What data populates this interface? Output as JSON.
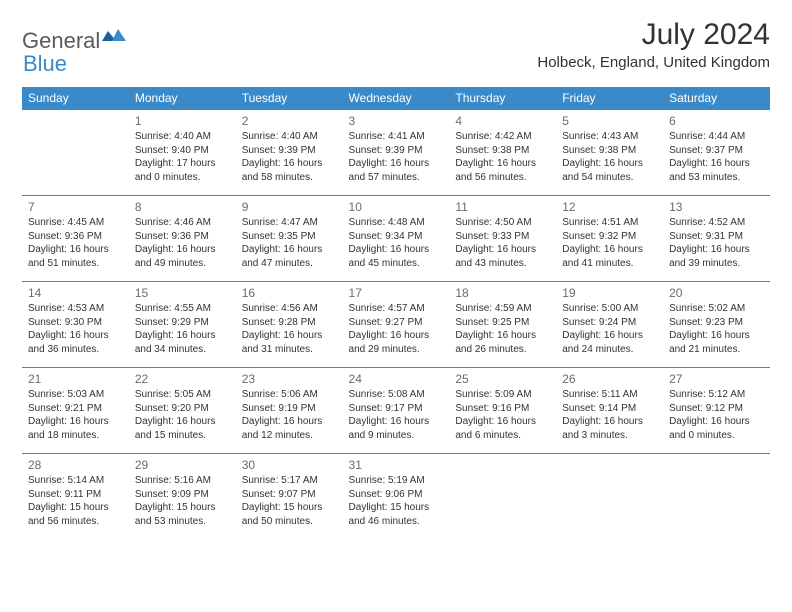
{
  "brand": {
    "general": "General",
    "blue": "Blue"
  },
  "colors": {
    "primary": "#3a8ac9",
    "text": "#333333",
    "daynum": "#6b6b6b",
    "background": "#ffffff"
  },
  "title": "July 2024",
  "location": "Holbeck, England, United Kingdom",
  "weekdays": [
    "Sunday",
    "Monday",
    "Tuesday",
    "Wednesday",
    "Thursday",
    "Friday",
    "Saturday"
  ],
  "weeks": [
    [
      null,
      {
        "n": "1",
        "sr": "Sunrise: 4:40 AM",
        "ss": "Sunset: 9:40 PM",
        "dl1": "Daylight: 17 hours",
        "dl2": "and 0 minutes."
      },
      {
        "n": "2",
        "sr": "Sunrise: 4:40 AM",
        "ss": "Sunset: 9:39 PM",
        "dl1": "Daylight: 16 hours",
        "dl2": "and 58 minutes."
      },
      {
        "n": "3",
        "sr": "Sunrise: 4:41 AM",
        "ss": "Sunset: 9:39 PM",
        "dl1": "Daylight: 16 hours",
        "dl2": "and 57 minutes."
      },
      {
        "n": "4",
        "sr": "Sunrise: 4:42 AM",
        "ss": "Sunset: 9:38 PM",
        "dl1": "Daylight: 16 hours",
        "dl2": "and 56 minutes."
      },
      {
        "n": "5",
        "sr": "Sunrise: 4:43 AM",
        "ss": "Sunset: 9:38 PM",
        "dl1": "Daylight: 16 hours",
        "dl2": "and 54 minutes."
      },
      {
        "n": "6",
        "sr": "Sunrise: 4:44 AM",
        "ss": "Sunset: 9:37 PM",
        "dl1": "Daylight: 16 hours",
        "dl2": "and 53 minutes."
      }
    ],
    [
      {
        "n": "7",
        "sr": "Sunrise: 4:45 AM",
        "ss": "Sunset: 9:36 PM",
        "dl1": "Daylight: 16 hours",
        "dl2": "and 51 minutes."
      },
      {
        "n": "8",
        "sr": "Sunrise: 4:46 AM",
        "ss": "Sunset: 9:36 PM",
        "dl1": "Daylight: 16 hours",
        "dl2": "and 49 minutes."
      },
      {
        "n": "9",
        "sr": "Sunrise: 4:47 AM",
        "ss": "Sunset: 9:35 PM",
        "dl1": "Daylight: 16 hours",
        "dl2": "and 47 minutes."
      },
      {
        "n": "10",
        "sr": "Sunrise: 4:48 AM",
        "ss": "Sunset: 9:34 PM",
        "dl1": "Daylight: 16 hours",
        "dl2": "and 45 minutes."
      },
      {
        "n": "11",
        "sr": "Sunrise: 4:50 AM",
        "ss": "Sunset: 9:33 PM",
        "dl1": "Daylight: 16 hours",
        "dl2": "and 43 minutes."
      },
      {
        "n": "12",
        "sr": "Sunrise: 4:51 AM",
        "ss": "Sunset: 9:32 PM",
        "dl1": "Daylight: 16 hours",
        "dl2": "and 41 minutes."
      },
      {
        "n": "13",
        "sr": "Sunrise: 4:52 AM",
        "ss": "Sunset: 9:31 PM",
        "dl1": "Daylight: 16 hours",
        "dl2": "and 39 minutes."
      }
    ],
    [
      {
        "n": "14",
        "sr": "Sunrise: 4:53 AM",
        "ss": "Sunset: 9:30 PM",
        "dl1": "Daylight: 16 hours",
        "dl2": "and 36 minutes."
      },
      {
        "n": "15",
        "sr": "Sunrise: 4:55 AM",
        "ss": "Sunset: 9:29 PM",
        "dl1": "Daylight: 16 hours",
        "dl2": "and 34 minutes."
      },
      {
        "n": "16",
        "sr": "Sunrise: 4:56 AM",
        "ss": "Sunset: 9:28 PM",
        "dl1": "Daylight: 16 hours",
        "dl2": "and 31 minutes."
      },
      {
        "n": "17",
        "sr": "Sunrise: 4:57 AM",
        "ss": "Sunset: 9:27 PM",
        "dl1": "Daylight: 16 hours",
        "dl2": "and 29 minutes."
      },
      {
        "n": "18",
        "sr": "Sunrise: 4:59 AM",
        "ss": "Sunset: 9:25 PM",
        "dl1": "Daylight: 16 hours",
        "dl2": "and 26 minutes."
      },
      {
        "n": "19",
        "sr": "Sunrise: 5:00 AM",
        "ss": "Sunset: 9:24 PM",
        "dl1": "Daylight: 16 hours",
        "dl2": "and 24 minutes."
      },
      {
        "n": "20",
        "sr": "Sunrise: 5:02 AM",
        "ss": "Sunset: 9:23 PM",
        "dl1": "Daylight: 16 hours",
        "dl2": "and 21 minutes."
      }
    ],
    [
      {
        "n": "21",
        "sr": "Sunrise: 5:03 AM",
        "ss": "Sunset: 9:21 PM",
        "dl1": "Daylight: 16 hours",
        "dl2": "and 18 minutes."
      },
      {
        "n": "22",
        "sr": "Sunrise: 5:05 AM",
        "ss": "Sunset: 9:20 PM",
        "dl1": "Daylight: 16 hours",
        "dl2": "and 15 minutes."
      },
      {
        "n": "23",
        "sr": "Sunrise: 5:06 AM",
        "ss": "Sunset: 9:19 PM",
        "dl1": "Daylight: 16 hours",
        "dl2": "and 12 minutes."
      },
      {
        "n": "24",
        "sr": "Sunrise: 5:08 AM",
        "ss": "Sunset: 9:17 PM",
        "dl1": "Daylight: 16 hours",
        "dl2": "and 9 minutes."
      },
      {
        "n": "25",
        "sr": "Sunrise: 5:09 AM",
        "ss": "Sunset: 9:16 PM",
        "dl1": "Daylight: 16 hours",
        "dl2": "and 6 minutes."
      },
      {
        "n": "26",
        "sr": "Sunrise: 5:11 AM",
        "ss": "Sunset: 9:14 PM",
        "dl1": "Daylight: 16 hours",
        "dl2": "and 3 minutes."
      },
      {
        "n": "27",
        "sr": "Sunrise: 5:12 AM",
        "ss": "Sunset: 9:12 PM",
        "dl1": "Daylight: 16 hours",
        "dl2": "and 0 minutes."
      }
    ],
    [
      {
        "n": "28",
        "sr": "Sunrise: 5:14 AM",
        "ss": "Sunset: 9:11 PM",
        "dl1": "Daylight: 15 hours",
        "dl2": "and 56 minutes."
      },
      {
        "n": "29",
        "sr": "Sunrise: 5:16 AM",
        "ss": "Sunset: 9:09 PM",
        "dl1": "Daylight: 15 hours",
        "dl2": "and 53 minutes."
      },
      {
        "n": "30",
        "sr": "Sunrise: 5:17 AM",
        "ss": "Sunset: 9:07 PM",
        "dl1": "Daylight: 15 hours",
        "dl2": "and 50 minutes."
      },
      {
        "n": "31",
        "sr": "Sunrise: 5:19 AM",
        "ss": "Sunset: 9:06 PM",
        "dl1": "Daylight: 15 hours",
        "dl2": "and 46 minutes."
      },
      null,
      null,
      null
    ]
  ]
}
